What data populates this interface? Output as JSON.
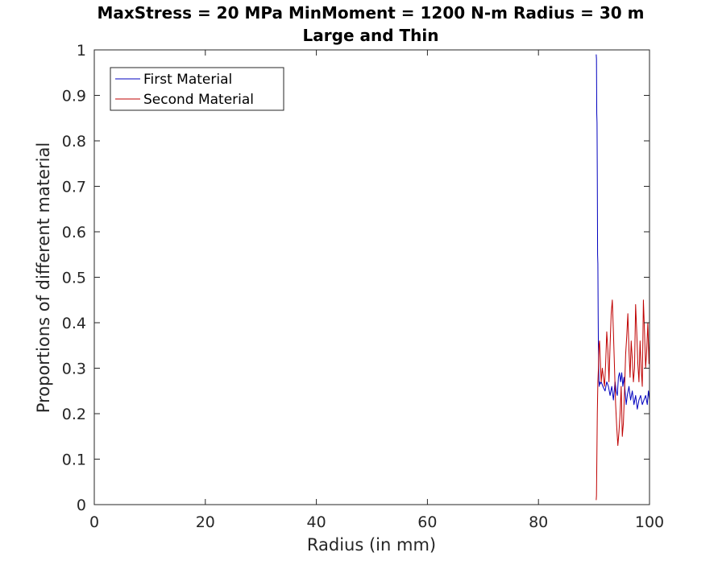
{
  "chart_data": {
    "type": "line",
    "title": "MaxStress = 20 MPa MinMoment = 1200 N-m Radius = 30 m",
    "subtitle": "Large and Thin",
    "xlabel": "Radius (in mm)",
    "ylabel": "Proportions of different material",
    "xlim": [
      0,
      100
    ],
    "ylim": [
      0,
      1
    ],
    "xticks": [
      0,
      20,
      40,
      60,
      80,
      100
    ],
    "yticks": [
      0,
      0.1,
      0.2,
      0.3,
      0.4,
      0.5,
      0.6,
      0.7,
      0.8,
      0.9,
      1
    ],
    "grid": false,
    "legend_position": "top-left",
    "series": [
      {
        "name": "First Material",
        "color": "#0000bf",
        "x": [
          90.4,
          90.45,
          90.5,
          90.55,
          90.6,
          90.65,
          90.7,
          90.75,
          90.8,
          90.85,
          90.9,
          90.95,
          91.0,
          91.1,
          91.3,
          91.6,
          92.0,
          92.3,
          92.6,
          92.9,
          93.2,
          93.5,
          93.8,
          94.0,
          94.2,
          94.4,
          94.6,
          94.8,
          95.0,
          95.2,
          95.4,
          95.6,
          95.8,
          96.0,
          96.3,
          96.6,
          96.9,
          97.2,
          97.5,
          97.8,
          98.1,
          98.4,
          98.7,
          99.0,
          99.3,
          99.6,
          99.8,
          100.0
        ],
        "y": [
          0.99,
          0.98,
          0.86,
          0.84,
          0.72,
          0.55,
          0.53,
          0.42,
          0.34,
          0.3,
          0.27,
          0.26,
          0.27,
          0.265,
          0.27,
          0.26,
          0.25,
          0.27,
          0.26,
          0.24,
          0.26,
          0.23,
          0.27,
          0.25,
          0.24,
          0.28,
          0.29,
          0.27,
          0.29,
          0.26,
          0.28,
          0.25,
          0.22,
          0.24,
          0.26,
          0.23,
          0.25,
          0.22,
          0.24,
          0.21,
          0.23,
          0.24,
          0.22,
          0.23,
          0.24,
          0.22,
          0.25,
          0.23
        ]
      },
      {
        "name": "Second Material",
        "color": "#bf0000",
        "x": [
          90.4,
          90.45,
          90.5,
          90.55,
          90.6,
          90.7,
          90.8,
          90.9,
          91.0,
          91.1,
          91.3,
          91.5,
          91.7,
          91.9,
          92.1,
          92.3,
          92.5,
          92.7,
          92.9,
          93.1,
          93.3,
          93.5,
          93.7,
          93.9,
          94.1,
          94.3,
          94.5,
          94.7,
          94.9,
          95.1,
          95.3,
          95.5,
          95.7,
          95.9,
          96.1,
          96.3,
          96.5,
          96.7,
          96.9,
          97.1,
          97.3,
          97.5,
          97.7,
          97.9,
          98.1,
          98.3,
          98.5,
          98.7,
          98.9,
          99.1,
          99.3,
          99.5,
          99.7,
          99.9,
          100.0
        ],
        "y": [
          0.01,
          0.02,
          0.08,
          0.14,
          0.2,
          0.27,
          0.3,
          0.35,
          0.36,
          0.33,
          0.27,
          0.3,
          0.28,
          0.26,
          0.31,
          0.38,
          0.34,
          0.27,
          0.35,
          0.42,
          0.45,
          0.38,
          0.3,
          0.22,
          0.17,
          0.13,
          0.16,
          0.2,
          0.26,
          0.15,
          0.18,
          0.25,
          0.33,
          0.37,
          0.42,
          0.34,
          0.28,
          0.36,
          0.32,
          0.27,
          0.3,
          0.44,
          0.38,
          0.31,
          0.27,
          0.36,
          0.3,
          0.26,
          0.45,
          0.38,
          0.3,
          0.34,
          0.4,
          0.31,
          0.36
        ]
      }
    ]
  }
}
